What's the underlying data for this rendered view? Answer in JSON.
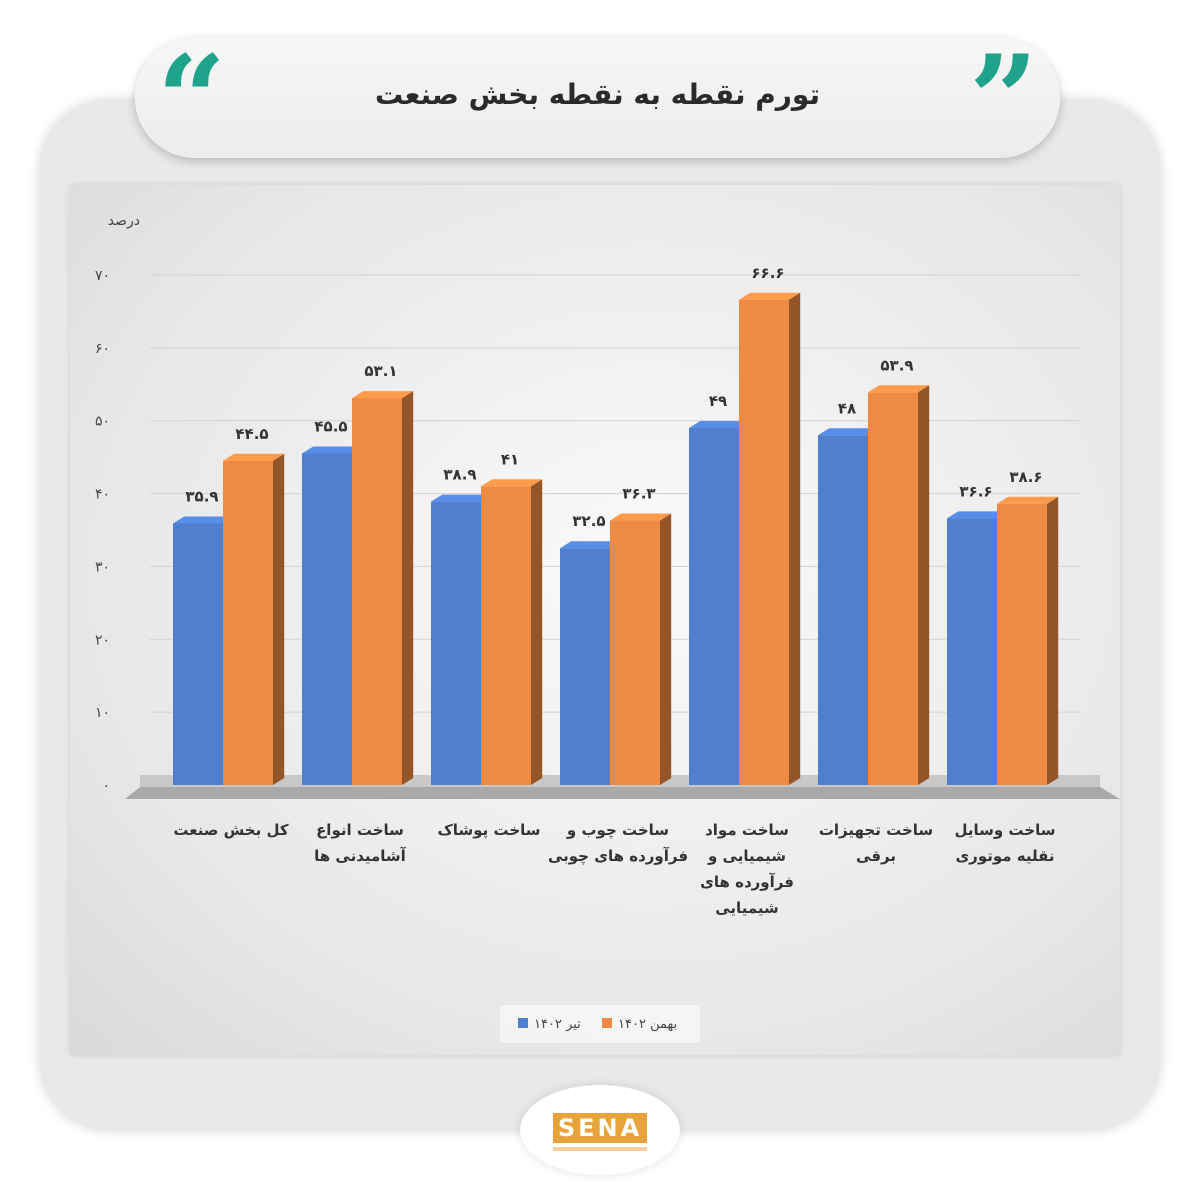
{
  "header": {
    "title": "تورم نقطه به نقطه بخش صنعت",
    "quote_open": "“",
    "quote_close": "”"
  },
  "logo": {
    "text": "SENA"
  },
  "colors": {
    "blue": "#4f7fce",
    "orange": "#ef8a42",
    "accent": "#1fa38a"
  },
  "chart_data": {
    "type": "bar",
    "title": "",
    "ylabel": "درصد",
    "ylim": [
      0,
      70
    ],
    "yticks": [
      0,
      10,
      20,
      30,
      40,
      50,
      60,
      70
    ],
    "ytick_labels": [
      "۰",
      "۱۰",
      "۲۰",
      "۳۰",
      "۴۰",
      "۵۰",
      "۶۰",
      "۷۰"
    ],
    "grid": true,
    "legend": "bottom-center",
    "categories": [
      [
        "کل بخش صنعت"
      ],
      [
        "ساخت انواع",
        "آشامیدنی ها"
      ],
      [
        "ساخت پوشاک"
      ],
      [
        "ساخت چوب و",
        "فرآورده های چوبی"
      ],
      [
        "ساخت مواد",
        "شیمیایی و",
        "فرآورده های",
        "شیمیایی"
      ],
      [
        "ساخت تجهیزات",
        "برقی"
      ],
      [
        "ساخت وسایل",
        "نقلیه موتوری"
      ]
    ],
    "series": [
      {
        "name": "تیر ۱۴۰۲",
        "color": "#4f7fce",
        "values": [
          35.9,
          45.5,
          38.9,
          32.5,
          49,
          48,
          36.6
        ],
        "labels": [
          "۳۵.۹",
          "۴۵.۵",
          "۳۸.۹",
          "۳۲.۵",
          "۴۹",
          "۴۸",
          "۳۶.۶"
        ]
      },
      {
        "name": "بهمن ۱۴۰۲",
        "color": "#ef8a42",
        "values": [
          44.5,
          53.1,
          41,
          36.3,
          66.6,
          53.9,
          38.6
        ],
        "labels": [
          "۴۴.۵",
          "۵۳.۱",
          "۴۱",
          "۳۶.۳",
          "۶۶.۶",
          "۵۳.۹",
          "۳۸.۶"
        ]
      }
    ]
  }
}
